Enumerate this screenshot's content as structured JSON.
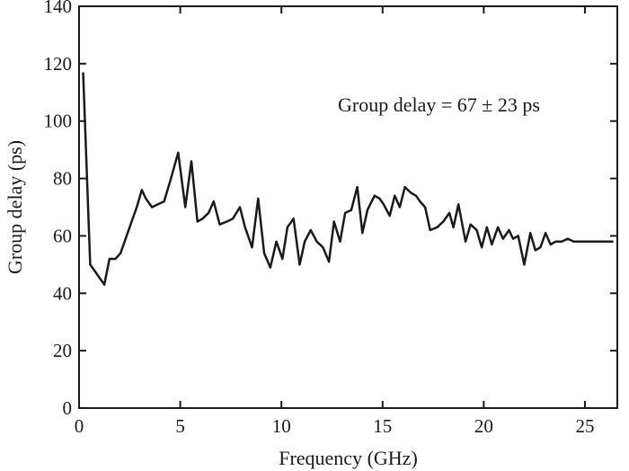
{
  "chart_data": {
    "type": "line",
    "xlabel": "Frequency (GHz)",
    "ylabel": "Group delay (ps)",
    "annotation": "Group delay = 67 ± 23 ps",
    "xlim": [
      0,
      26.6
    ],
    "ylim": [
      0,
      140
    ],
    "xticks": [
      0,
      5,
      10,
      15,
      20,
      25
    ],
    "yticks": [
      0,
      20,
      40,
      60,
      80,
      100,
      120,
      140
    ],
    "grid": false,
    "series": [
      {
        "color": "#1a1a1a",
        "x": [
          0.2,
          0.55,
          0.95,
          1.25,
          1.5,
          1.8,
          2.05,
          2.3,
          2.6,
          2.85,
          3.1,
          3.3,
          3.6,
          3.9,
          4.2,
          4.5,
          4.9,
          5.25,
          5.55,
          5.85,
          6.1,
          6.4,
          6.65,
          6.95,
          7.3,
          7.6,
          7.95,
          8.2,
          8.55,
          8.85,
          9.15,
          9.45,
          9.75,
          10.05,
          10.3,
          10.6,
          10.9,
          11.15,
          11.45,
          11.75,
          12.05,
          12.35,
          12.6,
          12.9,
          13.15,
          13.45,
          13.75,
          14.0,
          14.25,
          14.6,
          14.85,
          15.05,
          15.35,
          15.6,
          15.85,
          16.1,
          16.4,
          16.65,
          16.85,
          17.1,
          17.35,
          17.7,
          18.0,
          18.3,
          18.5,
          18.75,
          19.1,
          19.35,
          19.65,
          19.9,
          20.15,
          20.4,
          20.7,
          20.95,
          21.25,
          21.45,
          21.7,
          22.0,
          22.3,
          22.55,
          22.8,
          23.05,
          23.3,
          23.55,
          23.85,
          24.15,
          24.45,
          24.75,
          25.0,
          25.25,
          25.5,
          25.8,
          26.05,
          26.4
        ],
        "y": [
          117,
          50,
          46,
          43,
          52,
          52,
          54,
          59,
          65,
          70,
          76,
          73,
          70,
          71,
          72,
          79,
          89,
          70,
          86,
          65,
          66,
          68,
          72,
          64,
          65,
          66,
          70,
          63,
          56,
          73,
          54,
          49,
          58,
          52,
          63,
          66,
          50,
          58,
          62,
          58,
          56,
          51,
          65,
          58,
          68,
          69,
          77,
          61,
          69,
          74,
          73,
          71,
          67,
          74,
          70,
          77,
          75,
          74,
          72,
          70,
          62,
          63,
          65,
          68,
          63,
          71,
          58,
          64,
          62,
          56,
          63,
          57,
          63,
          59,
          62,
          59,
          60,
          50,
          61,
          55,
          56,
          61,
          57,
          58,
          58,
          59,
          58,
          58,
          58,
          58,
          58,
          58,
          58,
          58
        ]
      }
    ]
  }
}
